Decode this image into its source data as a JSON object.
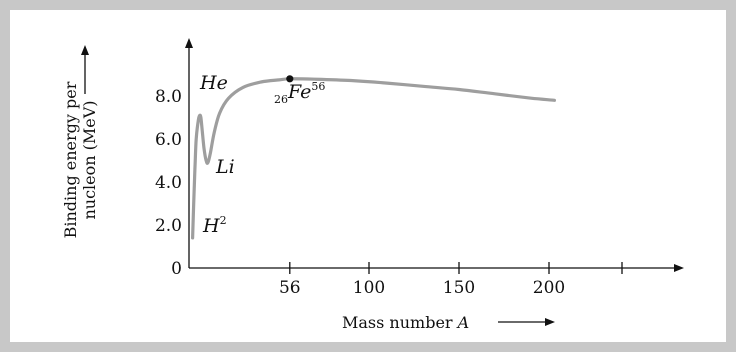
{
  "chart_data": {
    "type": "line",
    "xlabel": "Mass number",
    "xlabel_var": "A",
    "ylabel_line1": "Binding energy per",
    "ylabel_line2": "nucleon (MeV)",
    "x_ticks": [
      56,
      100,
      150,
      200
    ],
    "x_tick_labels": [
      "56",
      "100",
      "150",
      "200"
    ],
    "y_ticks": [
      0,
      2.0,
      4.0,
      6.0,
      8.0
    ],
    "y_tick_labels": [
      "0",
      "2.0",
      "4.0",
      "6.0",
      "8.0"
    ],
    "xlim": [
      0,
      240
    ],
    "ylim": [
      0,
      10.5
    ],
    "series": [
      {
        "x": [
          2,
          2.6,
          3.3,
          4,
          5.2,
          6,
          6.6,
          7.2,
          8.3,
          9.5,
          10.5,
          12,
          14,
          17,
          22,
          30,
          40,
          50,
          56,
          70,
          90,
          110,
          130,
          150,
          170,
          190,
          203
        ],
        "y": [
          1.4,
          3.0,
          4.6,
          6.0,
          6.9,
          7.1,
          7.0,
          6.5,
          5.6,
          5.0,
          4.9,
          5.4,
          6.3,
          7.2,
          7.9,
          8.4,
          8.65,
          8.75,
          8.8,
          8.78,
          8.72,
          8.6,
          8.45,
          8.3,
          8.1,
          7.9,
          7.8
        ],
        "color": "#9e9e9e"
      }
    ],
    "marker": {
      "x": 56,
      "y": 8.8,
      "color": "#111111"
    },
    "annotations": {
      "he": {
        "text": "He"
      },
      "li": {
        "text": "Li"
      },
      "h2": {
        "base": "H",
        "sup": "2"
      },
      "fe": {
        "pre_sub": "26",
        "base": "Fe",
        "sup": "56"
      }
    },
    "grid": false,
    "legend": "none"
  }
}
